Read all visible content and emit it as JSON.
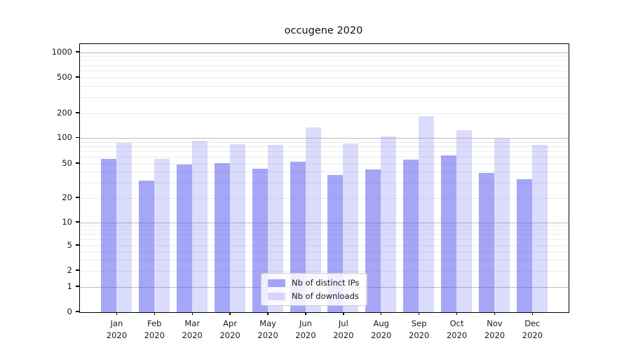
{
  "chart_data": {
    "type": "bar",
    "title": "occugene 2020",
    "categories": [
      "Jan",
      "Feb",
      "Mar",
      "Apr",
      "May",
      "Jun",
      "Jul",
      "Aug",
      "Sep",
      "Oct",
      "Nov",
      "Dec"
    ],
    "category_year": "2020",
    "series": [
      {
        "name": "Nb of distinct IPs",
        "color": "rgba(85,85,240,0.52)",
        "values": [
          57,
          32,
          49,
          51,
          44,
          53,
          37,
          43,
          56,
          63,
          39,
          33
        ]
      },
      {
        "name": "Nb of downloads",
        "color": "rgba(85,85,240,0.21)",
        "values": [
          88,
          57,
          94,
          85,
          84,
          135,
          86,
          104,
          184,
          125,
          100,
          83
        ]
      }
    ],
    "yscale": "symlog",
    "ylim": [
      0,
      1000
    ],
    "yticks": [
      1000,
      500,
      200,
      100,
      50,
      20,
      10,
      5,
      2,
      1,
      0
    ],
    "grid": true,
    "legend_position": "lower center",
    "colors": {
      "major_grid": "#bdbdbd",
      "minor_grid": "#ececec",
      "spine": "#000000",
      "text": "#1a1a1a"
    }
  }
}
